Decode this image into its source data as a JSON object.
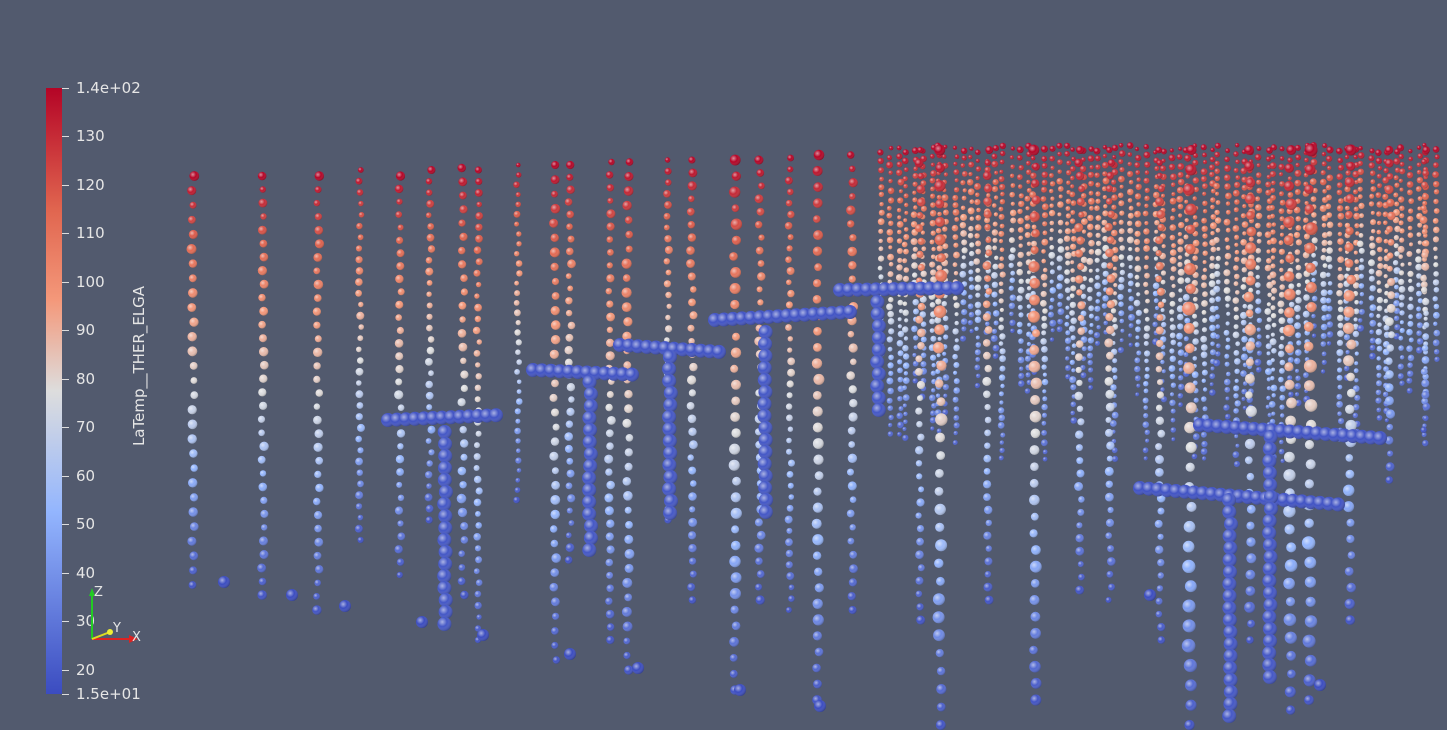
{
  "colorbar": {
    "title": "LaTemp__THER_ELGA",
    "range": [
      15,
      140
    ],
    "labels": [
      "1.4e+02",
      "130",
      "120",
      "110",
      "100",
      "90",
      "80",
      "70",
      "60",
      "50",
      "40",
      "30",
      "20",
      "1.5e+01"
    ],
    "values": [
      140,
      130,
      120,
      110,
      100,
      90,
      80,
      70,
      60,
      50,
      40,
      30,
      20,
      15
    ],
    "colors": {
      "low": "#3b4cc0",
      "mid": "#dddddd",
      "high": "#b40426"
    }
  },
  "axes": {
    "x_label": "X",
    "y_label": "Y",
    "z_label": "Z"
  }
}
